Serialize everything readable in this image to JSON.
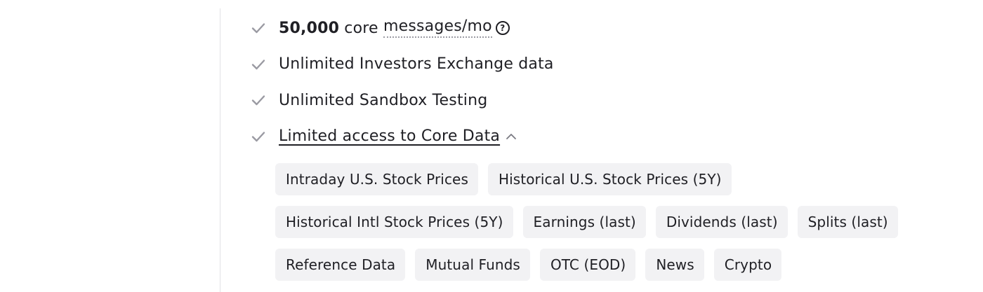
{
  "features": [
    {
      "bold": "50,000",
      "text": " core ",
      "dotted": "messages/mo",
      "help": "?"
    },
    {
      "text": "Unlimited Investors Exchange data"
    },
    {
      "text": "Unlimited Sandbox Testing"
    },
    {
      "link": "Limited access to Core Data"
    }
  ],
  "core_data_chips": [
    [
      "Intraday U.S. Stock Prices",
      "Historical U.S. Stock Prices (5Y)"
    ],
    [
      "Historical Intl Stock Prices (5Y)",
      "Earnings (last)",
      "Dividends (last)",
      "Splits (last)"
    ],
    [
      "Reference Data",
      "Mutual Funds",
      "OTC (EOD)",
      "News",
      "Crypto"
    ]
  ],
  "icons": {
    "check": "check-icon",
    "help": "question-circle-icon",
    "expand": "chevron-up-icon"
  },
  "colors": {
    "text": "#1f1f24",
    "check": "#9a9aa2",
    "chip_bg": "#f2f2f4",
    "divider": "#e2e2e6"
  }
}
